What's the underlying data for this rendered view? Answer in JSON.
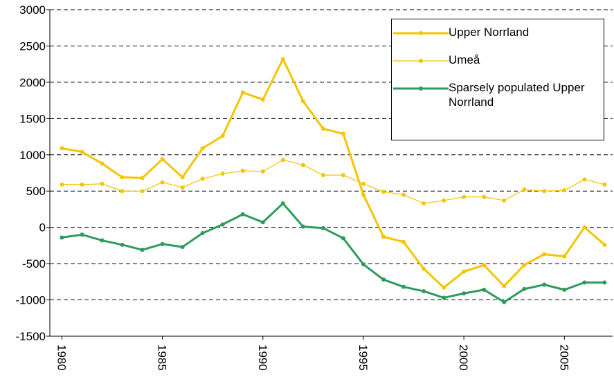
{
  "chart_data": {
    "type": "line",
    "x": [
      1980,
      1981,
      1982,
      1983,
      1984,
      1985,
      1986,
      1987,
      1988,
      1989,
      1990,
      1991,
      1992,
      1993,
      1994,
      1995,
      1996,
      1997,
      1998,
      1999,
      2000,
      2001,
      2002,
      2003,
      2004,
      2005,
      2006,
      2007
    ],
    "series": [
      {
        "name": "Upper Norrland",
        "color": "#f5c400",
        "width": 3,
        "values": [
          1090,
          1040,
          880,
          690,
          680,
          940,
          690,
          1090,
          1260,
          1860,
          1760,
          2320,
          1740,
          1360,
          1290,
          450,
          -130,
          -200,
          -570,
          -830,
          -610,
          -520,
          -810,
          -520,
          -370,
          -400,
          0,
          -240
        ]
      },
      {
        "name": "Umeå",
        "color": "#f5c400",
        "width": 1.2,
        "values": [
          590,
          590,
          600,
          500,
          500,
          620,
          550,
          670,
          740,
          780,
          770,
          930,
          860,
          720,
          720,
          600,
          490,
          450,
          330,
          370,
          420,
          420,
          370,
          520,
          500,
          510,
          660,
          590
        ]
      },
      {
        "name": "Sparsely populated Upper Norrland",
        "color": "#2e9a5c",
        "width": 3,
        "values": [
          -140,
          -100,
          -180,
          -240,
          -310,
          -230,
          -270,
          -80,
          40,
          180,
          70,
          330,
          10,
          -10,
          -150,
          -510,
          -720,
          -820,
          -880,
          -970,
          -910,
          -860,
          -1030,
          -850,
          -790,
          -860,
          -760,
          -760
        ]
      }
    ],
    "xlim": [
      1979.4,
      2007.4
    ],
    "xticks": [
      1980,
      1985,
      1990,
      1995,
      2000,
      2005
    ],
    "ylim": [
      -1500,
      3000
    ],
    "yticks": [
      -1500,
      -1000,
      -500,
      0,
      500,
      1000,
      1500,
      2000,
      2500,
      3000
    ],
    "grid": true
  }
}
